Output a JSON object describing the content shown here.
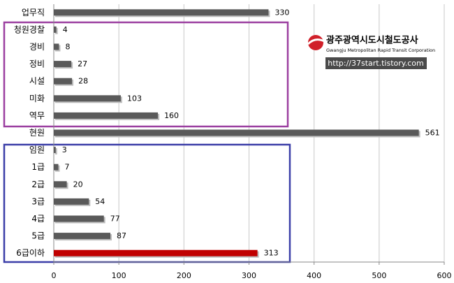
{
  "chart_data": {
    "type": "hbar",
    "categories": [
      "업무직",
      "청원경찰",
      "경비",
      "정비",
      "시설",
      "미화",
      "역무",
      "현원",
      "임원",
      "1급",
      "2급",
      "3급",
      "4급",
      "5급",
      "6급이하"
    ],
    "values": [
      330,
      4,
      8,
      27,
      28,
      103,
      160,
      561,
      3,
      7,
      20,
      54,
      77,
      87,
      313
    ],
    "colors": [
      "#5a5a5a",
      "#5a5a5a",
      "#5a5a5a",
      "#5a5a5a",
      "#5a5a5a",
      "#5a5a5a",
      "#5a5a5a",
      "#5a5a5a",
      "#5a5a5a",
      "#5a5a5a",
      "#5a5a5a",
      "#5a5a5a",
      "#5a5a5a",
      "#5a5a5a",
      "#c00000"
    ],
    "xlim": [
      0,
      600
    ],
    "xticks": [
      0,
      100,
      200,
      300,
      400,
      500,
      600
    ],
    "grid": true,
    "logo": {
      "title": "광주광역시도시철도공사",
      "subtitle": "Gwangju Metropolitan Rapid Transit Corporation",
      "url": "http://37start.tistory.com"
    }
  }
}
